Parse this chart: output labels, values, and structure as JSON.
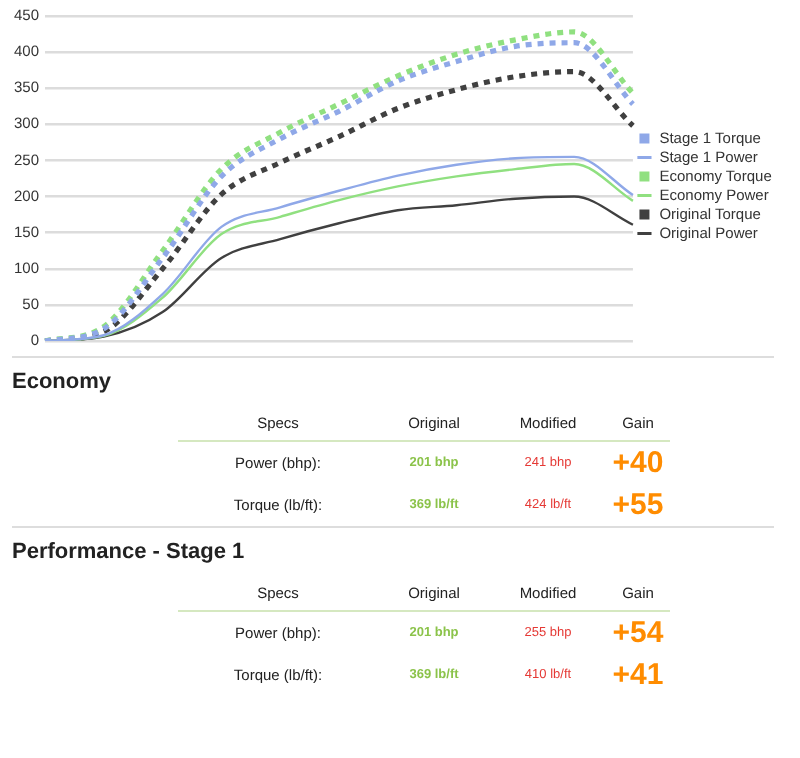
{
  "chart_data": [
    {
      "type": "line",
      "categories": [
        null,
        null,
        null,
        null,
        null,
        null,
        null,
        null,
        null,
        null,
        null
      ],
      "series": [
        {
          "name": "Stage 1 Torque",
          "color": "#8fa8e8",
          "line_style": "dotted",
          "values": [
            0,
            17,
            115,
            228,
            280,
            318,
            360,
            387,
            408,
            413,
            328
          ]
        },
        {
          "name": "Stage 1 Power",
          "color": "#8fa8e8",
          "line_style": "solid",
          "values": [
            0,
            8,
            65,
            158,
            185,
            208,
            229,
            244,
            253,
            255,
            202
          ]
        },
        {
          "name": "Economy Torque",
          "color": "#90e080",
          "line_style": "dotted",
          "values": [
            0,
            20,
            125,
            238,
            289,
            328,
            367,
            397,
            417,
            428,
            343
          ]
        },
        {
          "name": "Economy Power",
          "color": "#90e080",
          "line_style": "solid",
          "values": [
            0,
            7,
            60,
            148,
            172,
            195,
            214,
            228,
            238,
            245,
            194
          ]
        },
        {
          "name": "Original Torque",
          "color": "#404040",
          "line_style": "dotted",
          "values": [
            0,
            13,
            100,
            203,
            247,
            283,
            322,
            348,
            366,
            373,
            298
          ]
        },
        {
          "name": "Original Power",
          "color": "#404040",
          "line_style": "solid",
          "values": [
            0,
            6,
            40,
            115,
            141,
            163,
            181,
            188,
            197,
            200,
            161
          ]
        }
      ],
      "ylim": [
        0,
        450
      ],
      "yticks": [
        0,
        50,
        100,
        150,
        200,
        250,
        300,
        350,
        400,
        450
      ],
      "grid": "y",
      "legend": "right",
      "marker": "none",
      "tick_labels": "y"
    },
    {
      "type": "other",
      "title": "Economy",
      "annotations": [
        "Specs",
        "Original",
        "Modified",
        "Gain",
        "Power (bhp):",
        "201 bhp",
        "241 bhp",
        "+40",
        "Torque (lb/ft):",
        "369 lb/ft",
        "424 lb/ft",
        "+55"
      ]
    },
    {
      "type": "other",
      "title": "Performance - Stage 1",
      "annotations": [
        "Specs",
        "Original",
        "Modified",
        "Gain",
        "Power (bhp):",
        "201 bhp",
        "255 bhp",
        "+54",
        "Torque (lb/ft):",
        "369 lb/ft",
        "410 lb/ft",
        "+41"
      ]
    }
  ]
}
